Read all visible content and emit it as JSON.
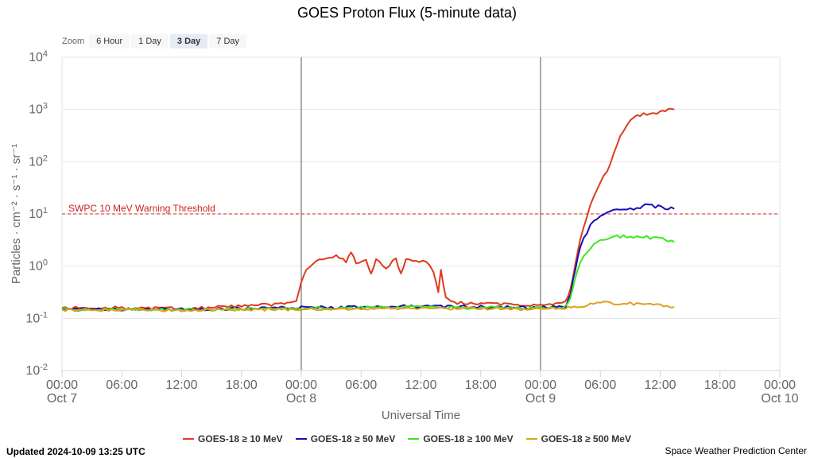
{
  "zoom": {
    "label": "Zoom",
    "options": [
      "6 Hour",
      "1 Day",
      "3 Day",
      "7 Day"
    ],
    "selected": "3 Day"
  },
  "footer": {
    "updated": "Updated 2024-10-09 13:25 UTC",
    "credit": "Space Weather Prediction Center"
  },
  "chart_data": {
    "type": "line",
    "title": "GOES Proton Flux (5-minute data)",
    "xlabel": "Universal Time",
    "ylabel": "Particles · cm⁻² · s⁻¹ · sr⁻¹",
    "yscale": "log",
    "ylim": [
      0.01,
      10000
    ],
    "y_ticks": [
      {
        "value": 0.01,
        "base": "10",
        "exp": "-2"
      },
      {
        "value": 0.1,
        "base": "10",
        "exp": "-1"
      },
      {
        "value": 1,
        "base": "10",
        "exp": "0"
      },
      {
        "value": 10,
        "base": "10",
        "exp": "1"
      },
      {
        "value": 100,
        "base": "10",
        "exp": "2"
      },
      {
        "value": 1000,
        "base": "10",
        "exp": "3"
      },
      {
        "value": 10000,
        "base": "10",
        "exp": "4"
      }
    ],
    "xlim": [
      "2024-10-07 00:00",
      "2024-10-10 00:00"
    ],
    "x_ticks": [
      {
        "time": "2024-10-07 00:00",
        "label": "00:00",
        "date": "Oct 7"
      },
      {
        "time": "2024-10-07 06:00",
        "label": "06:00",
        "date": ""
      },
      {
        "time": "2024-10-07 12:00",
        "label": "12:00",
        "date": ""
      },
      {
        "time": "2024-10-07 18:00",
        "label": "18:00",
        "date": ""
      },
      {
        "time": "2024-10-08 00:00",
        "label": "00:00",
        "date": "Oct 8"
      },
      {
        "time": "2024-10-08 06:00",
        "label": "06:00",
        "date": ""
      },
      {
        "time": "2024-10-08 12:00",
        "label": "12:00",
        "date": ""
      },
      {
        "time": "2024-10-08 18:00",
        "label": "18:00",
        "date": ""
      },
      {
        "time": "2024-10-09 00:00",
        "label": "00:00",
        "date": "Oct 9"
      },
      {
        "time": "2024-10-09 06:00",
        "label": "06:00",
        "date": ""
      },
      {
        "time": "2024-10-09 12:00",
        "label": "12:00",
        "date": ""
      },
      {
        "time": "2024-10-09 18:00",
        "label": "18:00",
        "date": ""
      },
      {
        "time": "2024-10-10 00:00",
        "label": "00:00",
        "date": "Oct 10"
      }
    ],
    "day_lines": [
      "2024-10-08 00:00",
      "2024-10-09 00:00"
    ],
    "threshold": {
      "label": "SWPC 10 MeV Warning Threshold",
      "value": 10,
      "color": "#cc2222"
    },
    "grid": true,
    "legend_position": "bottom-center",
    "series": [
      {
        "name": "GOES-18 ≥ 10 MeV",
        "color": "#e03a1e",
        "points": [
          [
            "2024-10-07 00:00",
            0.16
          ],
          [
            "2024-10-07 06:00",
            0.16
          ],
          [
            "2024-10-07 12:00",
            0.155
          ],
          [
            "2024-10-07 18:00",
            0.17
          ],
          [
            "2024-10-07 22:00",
            0.19
          ],
          [
            "2024-10-07 23:30",
            0.21
          ],
          [
            "2024-10-08 00:00",
            0.5
          ],
          [
            "2024-10-08 00:30",
            0.9
          ],
          [
            "2024-10-08 01:30",
            1.2
          ],
          [
            "2024-10-08 02:30",
            1.5
          ],
          [
            "2024-10-08 03:30",
            1.6
          ],
          [
            "2024-10-08 04:30",
            1.2
          ],
          [
            "2024-10-08 05:00",
            1.8
          ],
          [
            "2024-10-08 05:30",
            1.2
          ],
          [
            "2024-10-08 06:30",
            1.3
          ],
          [
            "2024-10-08 07:00",
            0.7
          ],
          [
            "2024-10-08 07:30",
            1.4
          ],
          [
            "2024-10-08 08:30",
            0.9
          ],
          [
            "2024-10-08 09:30",
            1.4
          ],
          [
            "2024-10-08 10:00",
            0.7
          ],
          [
            "2024-10-08 10:30",
            1.3
          ],
          [
            "2024-10-08 11:30",
            1.2
          ],
          [
            "2024-10-08 12:30",
            1.3
          ],
          [
            "2024-10-08 13:15",
            0.8
          ],
          [
            "2024-10-08 13:45",
            0.3
          ],
          [
            "2024-10-08 14:00",
            0.8
          ],
          [
            "2024-10-08 14:30",
            0.25
          ],
          [
            "2024-10-08 15:00",
            0.2
          ],
          [
            "2024-10-08 18:00",
            0.19
          ],
          [
            "2024-10-08 21:00",
            0.18
          ],
          [
            "2024-10-09 00:00",
            0.18
          ],
          [
            "2024-10-09 01:30",
            0.19
          ],
          [
            "2024-10-09 02:30",
            0.2
          ],
          [
            "2024-10-09 03:00",
            0.35
          ],
          [
            "2024-10-09 03:30",
            1.2
          ],
          [
            "2024-10-09 04:00",
            3.5
          ],
          [
            "2024-10-09 05:00",
            15
          ],
          [
            "2024-10-09 06:00",
            40
          ],
          [
            "2024-10-09 07:00",
            90
          ],
          [
            "2024-10-09 08:00",
            300
          ],
          [
            "2024-10-09 09:00",
            650
          ],
          [
            "2024-10-09 10:00",
            800
          ],
          [
            "2024-10-09 11:00",
            850
          ],
          [
            "2024-10-09 12:00",
            900
          ],
          [
            "2024-10-09 12:30",
            950
          ],
          [
            "2024-10-09 13:00",
            1050
          ],
          [
            "2024-10-09 13:25",
            1000
          ]
        ]
      },
      {
        "name": "GOES-18 ≥ 50 MeV",
        "color": "#1a0fb4",
        "points": [
          [
            "2024-10-07 00:00",
            0.15
          ],
          [
            "2024-10-07 06:00",
            0.15
          ],
          [
            "2024-10-07 12:00",
            0.148
          ],
          [
            "2024-10-07 18:00",
            0.155
          ],
          [
            "2024-10-08 00:00",
            0.16
          ],
          [
            "2024-10-08 06:00",
            0.165
          ],
          [
            "2024-10-08 12:00",
            0.17
          ],
          [
            "2024-10-08 18:00",
            0.165
          ],
          [
            "2024-10-09 00:00",
            0.16
          ],
          [
            "2024-10-09 02:30",
            0.17
          ],
          [
            "2024-10-09 03:00",
            0.3
          ],
          [
            "2024-10-09 03:30",
            0.9
          ],
          [
            "2024-10-09 04:00",
            2.5
          ],
          [
            "2024-10-09 05:00",
            6
          ],
          [
            "2024-10-09 06:00",
            9
          ],
          [
            "2024-10-09 07:00",
            11
          ],
          [
            "2024-10-09 08:00",
            12
          ],
          [
            "2024-10-09 09:00",
            12.5
          ],
          [
            "2024-10-09 10:00",
            13
          ],
          [
            "2024-10-09 10:30",
            15
          ],
          [
            "2024-10-09 11:30",
            14
          ],
          [
            "2024-10-09 12:30",
            13
          ],
          [
            "2024-10-09 13:25",
            12.5
          ]
        ]
      },
      {
        "name": "GOES-18 ≥ 100 MeV",
        "color": "#3de61f",
        "points": [
          [
            "2024-10-07 00:00",
            0.148
          ],
          [
            "2024-10-07 06:00",
            0.148
          ],
          [
            "2024-10-07 12:00",
            0.146
          ],
          [
            "2024-10-07 18:00",
            0.15
          ],
          [
            "2024-10-08 00:00",
            0.155
          ],
          [
            "2024-10-08 06:00",
            0.158
          ],
          [
            "2024-10-08 12:00",
            0.162
          ],
          [
            "2024-10-08 18:00",
            0.16
          ],
          [
            "2024-10-09 00:00",
            0.155
          ],
          [
            "2024-10-09 02:30",
            0.165
          ],
          [
            "2024-10-09 03:00",
            0.25
          ],
          [
            "2024-10-09 03:30",
            0.6
          ],
          [
            "2024-10-09 04:00",
            1.2
          ],
          [
            "2024-10-09 05:00",
            2.3
          ],
          [
            "2024-10-09 06:00",
            3.2
          ],
          [
            "2024-10-09 07:00",
            3.6
          ],
          [
            "2024-10-09 08:00",
            3.7
          ],
          [
            "2024-10-09 09:00",
            3.6
          ],
          [
            "2024-10-09 10:00",
            3.6
          ],
          [
            "2024-10-09 11:00",
            3.5
          ],
          [
            "2024-10-09 12:00",
            3.4
          ],
          [
            "2024-10-09 12:30",
            3.2
          ],
          [
            "2024-10-09 13:25",
            2.9
          ]
        ]
      },
      {
        "name": "GOES-18 ≥ 500 MeV",
        "color": "#e0a020",
        "points": [
          [
            "2024-10-07 00:00",
            0.145
          ],
          [
            "2024-10-07 06:00",
            0.145
          ],
          [
            "2024-10-07 12:00",
            0.143
          ],
          [
            "2024-10-07 18:00",
            0.147
          ],
          [
            "2024-10-08 00:00",
            0.15
          ],
          [
            "2024-10-08 06:00",
            0.152
          ],
          [
            "2024-10-08 12:00",
            0.155
          ],
          [
            "2024-10-08 18:00",
            0.152
          ],
          [
            "2024-10-09 00:00",
            0.15
          ],
          [
            "2024-10-09 02:30",
            0.155
          ],
          [
            "2024-10-09 04:00",
            0.17
          ],
          [
            "2024-10-09 06:00",
            0.2
          ],
          [
            "2024-10-09 08:00",
            0.195
          ],
          [
            "2024-10-09 10:00",
            0.19
          ],
          [
            "2024-10-09 12:00",
            0.18
          ],
          [
            "2024-10-09 13:25",
            0.165
          ]
        ]
      }
    ]
  }
}
